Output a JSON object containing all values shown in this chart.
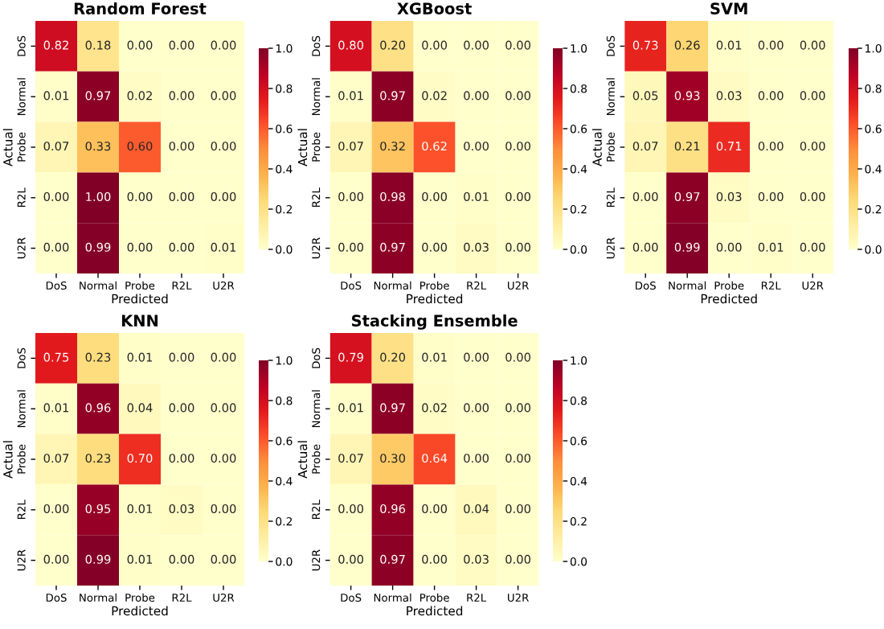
{
  "chart_data": [
    {
      "type": "heatmap",
      "title": "Random Forest",
      "xlabel": "Predicted",
      "ylabel": "Actual",
      "categories": [
        "DoS",
        "Normal",
        "Probe",
        "R2L",
        "U2R"
      ],
      "y_categories": [
        "DoS",
        "Normal",
        "Probe",
        "R2L",
        "U2R"
      ],
      "cells": [
        [
          0.82,
          0.18,
          0.0,
          0.0,
          0.0
        ],
        [
          0.01,
          0.97,
          0.02,
          0.0,
          0.0
        ],
        [
          0.07,
          0.33,
          0.6,
          0.0,
          0.0
        ],
        [
          0.0,
          1.0,
          0.0,
          0.0,
          0.0
        ],
        [
          0.0,
          0.99,
          0.0,
          0.0,
          0.01
        ]
      ],
      "cell_labels": [
        [
          "0.82",
          "0.18",
          "0.00",
          "0.00",
          "0.00"
        ],
        [
          "0.01",
          "0.97",
          "0.02",
          "0.00",
          "0.00"
        ],
        [
          "0.07",
          "0.33",
          "0.60",
          "0.00",
          "0.00"
        ],
        [
          "0.00",
          "1.00",
          "0.00",
          "0.00",
          "0.00"
        ],
        [
          "0.00",
          "0.99",
          "0.00",
          "0.00",
          "0.01"
        ]
      ],
      "clim": [
        0,
        1
      ],
      "cticks": [
        {
          "value": 0,
          "label": "0.0"
        },
        {
          "value": 0.2,
          "label": "0.2"
        },
        {
          "value": 0.4,
          "label": "0.4"
        },
        {
          "value": 0.6,
          "label": "0.6"
        },
        {
          "value": 0.8,
          "label": "0.8"
        },
        {
          "value": 1,
          "label": "1.0"
        }
      ]
    },
    {
      "type": "heatmap",
      "title": "XGBoost",
      "xlabel": "Predicted",
      "ylabel": "Actual",
      "categories": [
        "DoS",
        "Normal",
        "Probe",
        "R2L",
        "U2R"
      ],
      "y_categories": [
        "DoS",
        "Normal",
        "Probe",
        "R2L",
        "U2R"
      ],
      "cells": [
        [
          0.8,
          0.2,
          0.0,
          0.0,
          0.0
        ],
        [
          0.01,
          0.97,
          0.02,
          0.0,
          0.0
        ],
        [
          0.07,
          0.32,
          0.62,
          0.0,
          0.0
        ],
        [
          0.0,
          0.98,
          0.0,
          0.01,
          0.0
        ],
        [
          0.0,
          0.97,
          0.0,
          0.03,
          0.0
        ]
      ],
      "cell_labels": [
        [
          "0.80",
          "0.20",
          "0.00",
          "0.00",
          "0.00"
        ],
        [
          "0.01",
          "0.97",
          "0.02",
          "0.00",
          "0.00"
        ],
        [
          "0.07",
          "0.32",
          "0.62",
          "0.00",
          "0.00"
        ],
        [
          "0.00",
          "0.98",
          "0.00",
          "0.01",
          "0.00"
        ],
        [
          "0.00",
          "0.97",
          "0.00",
          "0.03",
          "0.00"
        ]
      ],
      "clim": [
        0,
        1
      ],
      "cticks": [
        {
          "value": 0,
          "label": "0.0"
        },
        {
          "value": 0.2,
          "label": "0.2"
        },
        {
          "value": 0.4,
          "label": "0.4"
        },
        {
          "value": 0.6,
          "label": "0.6"
        },
        {
          "value": 0.8,
          "label": "0.8"
        },
        {
          "value": 1,
          "label": "1.0"
        }
      ]
    },
    {
      "type": "heatmap",
      "title": "SVM",
      "xlabel": "Predicted",
      "ylabel": "Actual",
      "categories": [
        "DoS",
        "Normal",
        "Probe",
        "R2L",
        "U2R"
      ],
      "y_categories": [
        "DoS",
        "Normal",
        "Probe",
        "R2L",
        "U2R"
      ],
      "cells": [
        [
          0.73,
          0.26,
          0.01,
          0.0,
          0.0
        ],
        [
          0.05,
          0.93,
          0.03,
          0.0,
          0.0
        ],
        [
          0.07,
          0.21,
          0.71,
          0.0,
          0.0
        ],
        [
          0.0,
          0.97,
          0.03,
          0.0,
          0.0
        ],
        [
          0.0,
          0.99,
          0.0,
          0.01,
          0.0
        ]
      ],
      "cell_labels": [
        [
          "0.73",
          "0.26",
          "0.01",
          "0.00",
          "0.00"
        ],
        [
          "0.05",
          "0.93",
          "0.03",
          "0.00",
          "0.00"
        ],
        [
          "0.07",
          "0.21",
          "0.71",
          "0.00",
          "0.00"
        ],
        [
          "0.00",
          "0.97",
          "0.03",
          "0.00",
          "0.00"
        ],
        [
          "0.00",
          "0.99",
          "0.00",
          "0.01",
          "0.00"
        ]
      ],
      "clim": [
        0,
        1
      ],
      "cticks": [
        {
          "value": 0,
          "label": "0.0"
        },
        {
          "value": 0.2,
          "label": "0.2"
        },
        {
          "value": 0.4,
          "label": "0.4"
        },
        {
          "value": 0.6,
          "label": "0.6"
        },
        {
          "value": 0.8,
          "label": "0.8"
        },
        {
          "value": 1,
          "label": "1.0"
        }
      ]
    },
    {
      "type": "heatmap",
      "title": "KNN",
      "xlabel": "Predicted",
      "ylabel": "Actual",
      "categories": [
        "DoS",
        "Normal",
        "Probe",
        "R2L",
        "U2R"
      ],
      "y_categories": [
        "DoS",
        "Normal",
        "Probe",
        "R2L",
        "U2R"
      ],
      "cells": [
        [
          0.75,
          0.23,
          0.01,
          0.0,
          0.0
        ],
        [
          0.01,
          0.96,
          0.04,
          0.0,
          0.0
        ],
        [
          0.07,
          0.23,
          0.7,
          0.0,
          0.0
        ],
        [
          0.0,
          0.95,
          0.01,
          0.03,
          0.0
        ],
        [
          0.0,
          0.99,
          0.01,
          0.0,
          0.0
        ]
      ],
      "cell_labels": [
        [
          "0.75",
          "0.23",
          "0.01",
          "0.00",
          "0.00"
        ],
        [
          "0.01",
          "0.96",
          "0.04",
          "0.00",
          "0.00"
        ],
        [
          "0.07",
          "0.23",
          "0.70",
          "0.00",
          "0.00"
        ],
        [
          "0.00",
          "0.95",
          "0.01",
          "0.03",
          "0.00"
        ],
        [
          "0.00",
          "0.99",
          "0.01",
          "0.00",
          "0.00"
        ]
      ],
      "clim": [
        0,
        1
      ],
      "cticks": [
        {
          "value": 0,
          "label": "0.0"
        },
        {
          "value": 0.2,
          "label": "0.2"
        },
        {
          "value": 0.4,
          "label": "0.4"
        },
        {
          "value": 0.6,
          "label": "0.6"
        },
        {
          "value": 0.8,
          "label": "0.8"
        },
        {
          "value": 1,
          "label": "1.0"
        }
      ]
    },
    {
      "type": "heatmap",
      "title": "Stacking Ensemble",
      "xlabel": "Predicted",
      "ylabel": "Actual",
      "categories": [
        "DoS",
        "Normal",
        "Probe",
        "R2L",
        "U2R"
      ],
      "y_categories": [
        "DoS",
        "Normal",
        "Probe",
        "R2L",
        "U2R"
      ],
      "cells": [
        [
          0.79,
          0.2,
          0.01,
          0.0,
          0.0
        ],
        [
          0.01,
          0.97,
          0.02,
          0.0,
          0.0
        ],
        [
          0.07,
          0.3,
          0.64,
          0.0,
          0.0
        ],
        [
          0.0,
          0.96,
          0.0,
          0.04,
          0.0
        ],
        [
          0.0,
          0.97,
          0.0,
          0.03,
          0.0
        ]
      ],
      "cell_labels": [
        [
          "0.79",
          "0.20",
          "0.01",
          "0.00",
          "0.00"
        ],
        [
          "0.01",
          "0.97",
          "0.02",
          "0.00",
          "0.00"
        ],
        [
          "0.07",
          "0.30",
          "0.64",
          "0.00",
          "0.00"
        ],
        [
          "0.00",
          "0.96",
          "0.00",
          "0.04",
          "0.00"
        ],
        [
          "0.00",
          "0.97",
          "0.00",
          "0.03",
          "0.00"
        ]
      ],
      "clim": [
        0,
        1
      ],
      "cticks": [
        {
          "value": 0,
          "label": "0.0"
        },
        {
          "value": 0.2,
          "label": "0.2"
        },
        {
          "value": 0.4,
          "label": "0.4"
        },
        {
          "value": 0.6,
          "label": "0.6"
        },
        {
          "value": 0.8,
          "label": "0.8"
        },
        {
          "value": 1,
          "label": "1.0"
        }
      ]
    }
  ]
}
